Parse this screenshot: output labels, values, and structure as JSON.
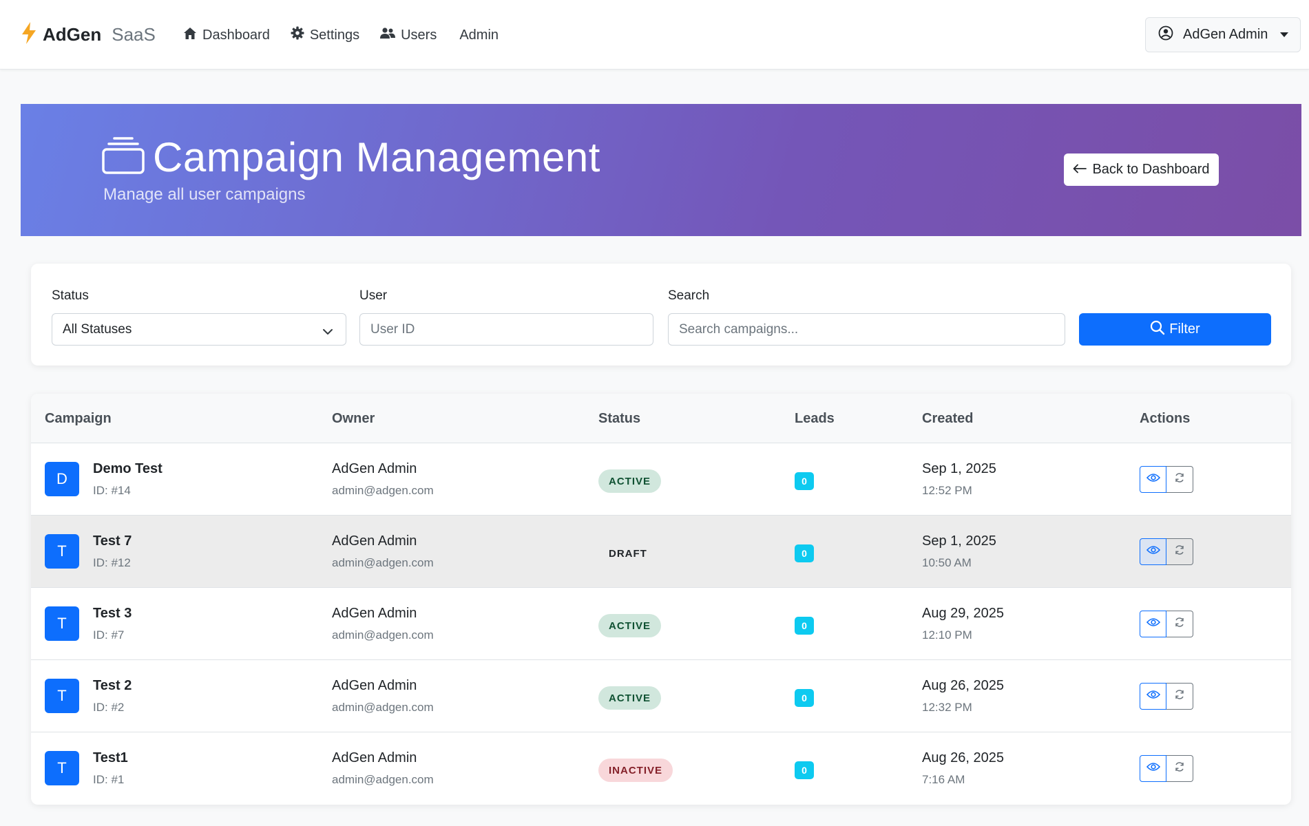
{
  "navbar": {
    "brand_name": "AdGen",
    "brand_suffix": "SaaS",
    "links": [
      {
        "label": "Dashboard",
        "icon": "home-icon"
      },
      {
        "label": "Settings",
        "icon": "gear-icon"
      },
      {
        "label": "Users",
        "icon": "users-icon"
      },
      {
        "label": "Admin",
        "icon": ""
      }
    ],
    "user_menu_label": "AdGen Admin"
  },
  "hero": {
    "title": "Campaign Management",
    "subtitle": "Manage all user campaigns",
    "back_button_label": "Back to Dashboard"
  },
  "filters": {
    "status_label": "Status",
    "status_value": "All Statuses",
    "user_label": "User",
    "user_placeholder": "User ID",
    "search_label": "Search",
    "search_placeholder": "Search campaigns...",
    "filter_button_label": "Filter"
  },
  "table": {
    "headers": [
      "Campaign",
      "Owner",
      "Status",
      "Leads",
      "Created",
      "Actions"
    ],
    "rows": [
      {
        "initial": "D",
        "name": "Demo Test",
        "id": "ID: #14",
        "owner": "AdGen Admin",
        "email": "admin@adgen.com",
        "status": "ACTIVE",
        "leads": "0",
        "date": "Sep 1, 2025",
        "time": "12:52 PM"
      },
      {
        "initial": "T",
        "name": "Test 7",
        "id": "ID: #12",
        "owner": "AdGen Admin",
        "email": "admin@adgen.com",
        "status": "DRAFT",
        "leads": "0",
        "date": "Sep 1, 2025",
        "time": "10:50 AM"
      },
      {
        "initial": "T",
        "name": "Test 3",
        "id": "ID: #7",
        "owner": "AdGen Admin",
        "email": "admin@adgen.com",
        "status": "ACTIVE",
        "leads": "0",
        "date": "Aug 29, 2025",
        "time": "12:10 PM"
      },
      {
        "initial": "T",
        "name": "Test 2",
        "id": "ID: #2",
        "owner": "AdGen Admin",
        "email": "admin@adgen.com",
        "status": "ACTIVE",
        "leads": "0",
        "date": "Aug 26, 2025",
        "time": "12:32 PM"
      },
      {
        "initial": "T",
        "name": "Test1",
        "id": "ID: #1",
        "owner": "AdGen Admin",
        "email": "admin@adgen.com",
        "status": "INACTIVE",
        "leads": "0",
        "date": "Aug 26, 2025",
        "time": "7:16 AM"
      }
    ]
  },
  "colors": {
    "primary": "#0d6efd",
    "info_badge": "#0dcaf0",
    "hero_gradient_start": "#6a80e6",
    "hero_gradient_end": "#7b4ea7",
    "brand_bolt": "#f5a623"
  }
}
